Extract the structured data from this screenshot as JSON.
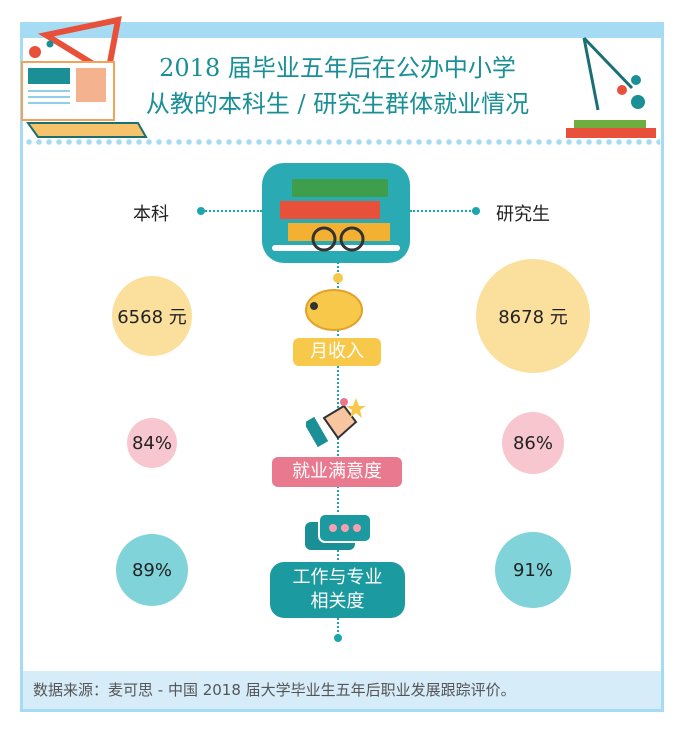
{
  "title": {
    "line1": "2018 届毕业五年后在公办中小学",
    "line2": "从教的本科生 / 研究生群体就业情况"
  },
  "groups": {
    "left": "本科",
    "right": "研究生"
  },
  "metrics": [
    {
      "label": "月收入",
      "left": "6568 元",
      "right": "8678 元",
      "left_value": 6568,
      "right_value": 8678,
      "color": "#f7c84a",
      "circle_color": "#fbe09d",
      "icon": "piggy-bank-icon"
    },
    {
      "label": "就业满意度",
      "left": "84%",
      "right": "86%",
      "left_value": 84,
      "right_value": 86,
      "color": "#e9798f",
      "circle_color": "#f7c6cf",
      "icon": "thumbs-up-icon"
    },
    {
      "label": "工作与专业\n相关度",
      "left": "89%",
      "right": "91%",
      "left_value": 89,
      "right_value": 91,
      "color": "#1b9aa0",
      "circle_color": "#7fd3d9",
      "icon": "chat-hearts-icon"
    }
  ],
  "footer": "数据来源：麦可思 - 中国 2018 届大学毕业生五年后职业发展跟踪评价。"
}
